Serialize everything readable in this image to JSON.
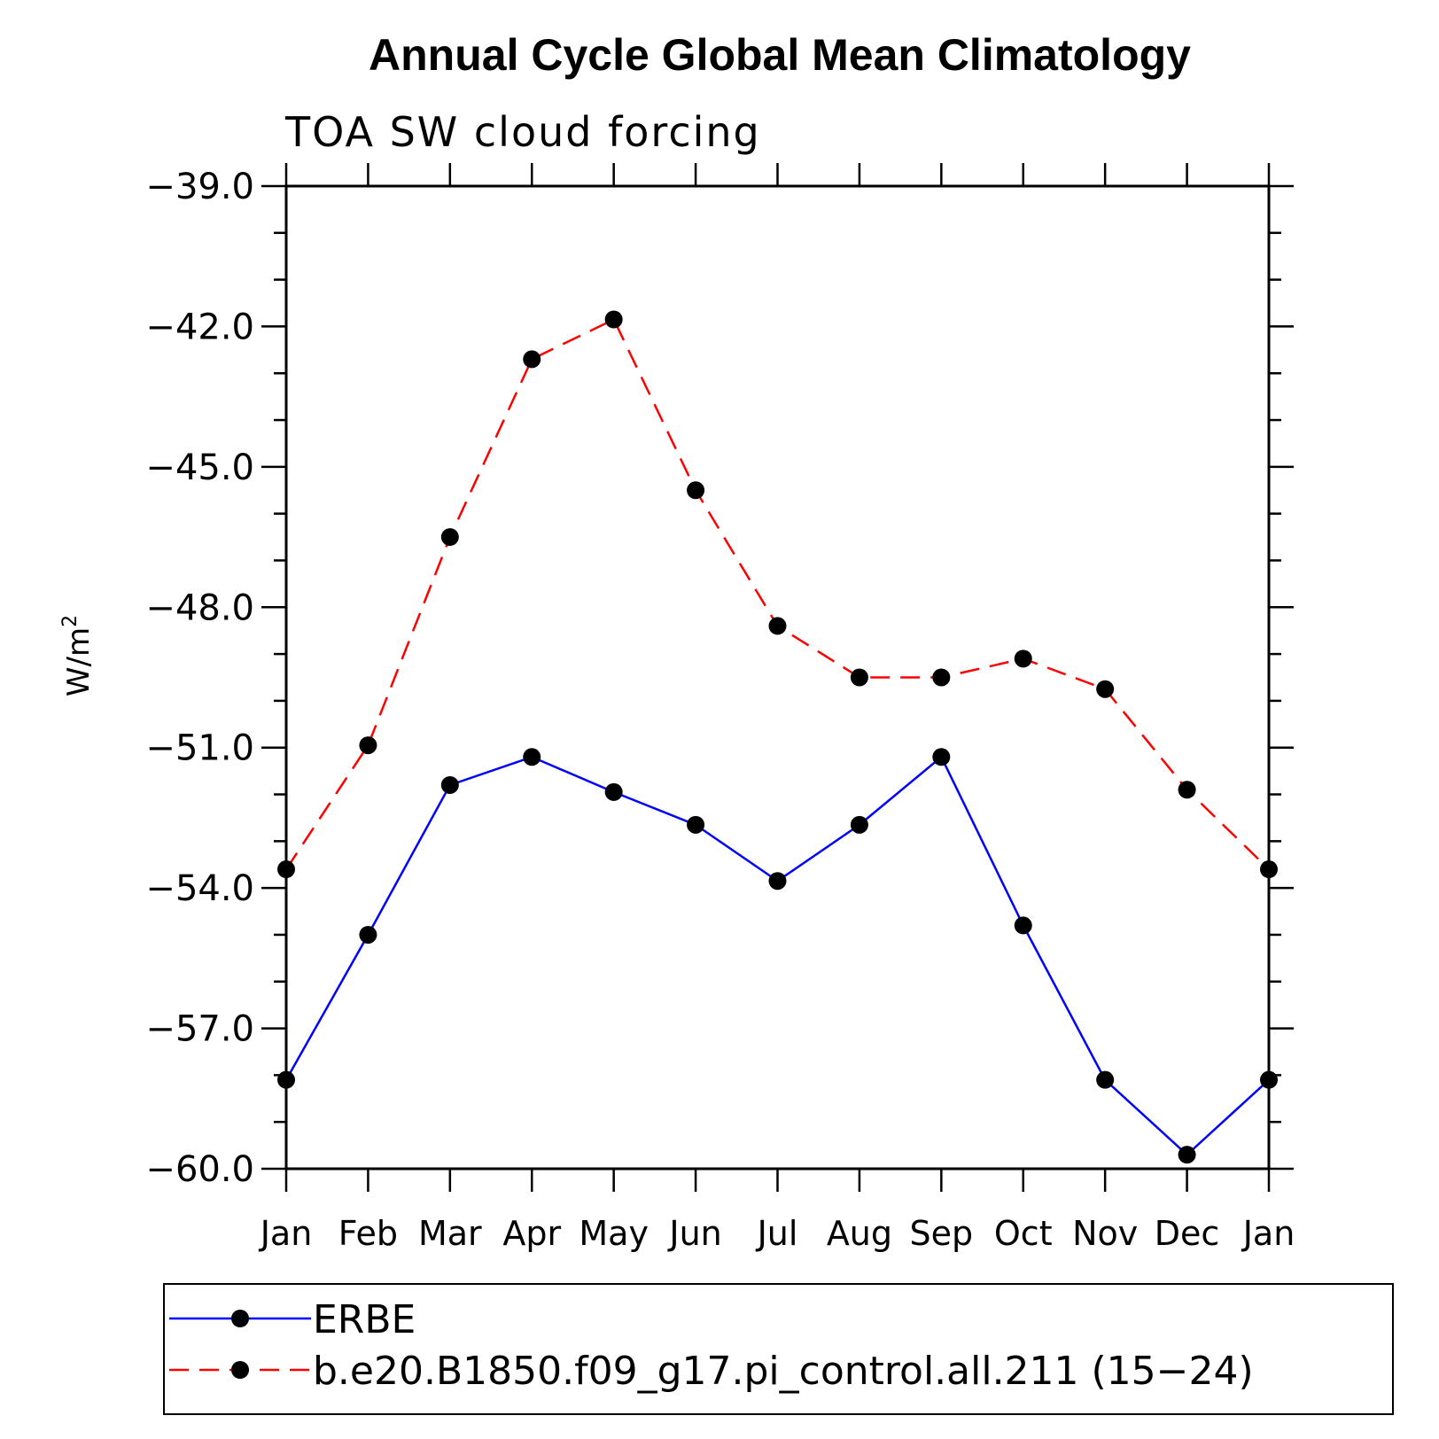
{
  "chart_data": {
    "type": "line",
    "title": "Annual Cycle Global Mean Climatology",
    "subtitle": "TOA SW cloud forcing",
    "xlabel": "",
    "ylabel": "W/m",
    "ylabel_sup": "2",
    "categories": [
      "Jan",
      "Feb",
      "Mar",
      "Apr",
      "May",
      "Jun",
      "Jul",
      "Aug",
      "Sep",
      "Oct",
      "Nov",
      "Dec",
      "Jan"
    ],
    "ylim": [
      -60.0,
      -39.0
    ],
    "yticks": [
      -39.0,
      -42.0,
      -45.0,
      -48.0,
      -51.0,
      -54.0,
      -57.0,
      -60.0
    ],
    "ytick_labels": [
      "−39.0",
      "−42.0",
      "−45.0",
      "−48.0",
      "−51.0",
      "−54.0",
      "−57.0",
      "−60.0"
    ],
    "grid": false,
    "legend_position": "bottom",
    "series": [
      {
        "name": "ERBE",
        "color": "#0000ff",
        "style": "solid",
        "values": [
          -58.1,
          -55.0,
          -51.8,
          -51.2,
          -51.95,
          -52.65,
          -53.85,
          -52.65,
          -51.2,
          -54.8,
          -58.1,
          -59.7,
          -58.1
        ]
      },
      {
        "name": "b.e20.B1850.f09_g17.pi_control.all.211 (15−24)",
        "color": "#ff0000",
        "style": "dashed",
        "values": [
          -53.6,
          -50.95,
          -46.5,
          -42.7,
          -41.85,
          -45.5,
          -48.4,
          -49.5,
          -49.5,
          -49.1,
          -49.75,
          -51.9,
          -53.6
        ]
      }
    ]
  }
}
